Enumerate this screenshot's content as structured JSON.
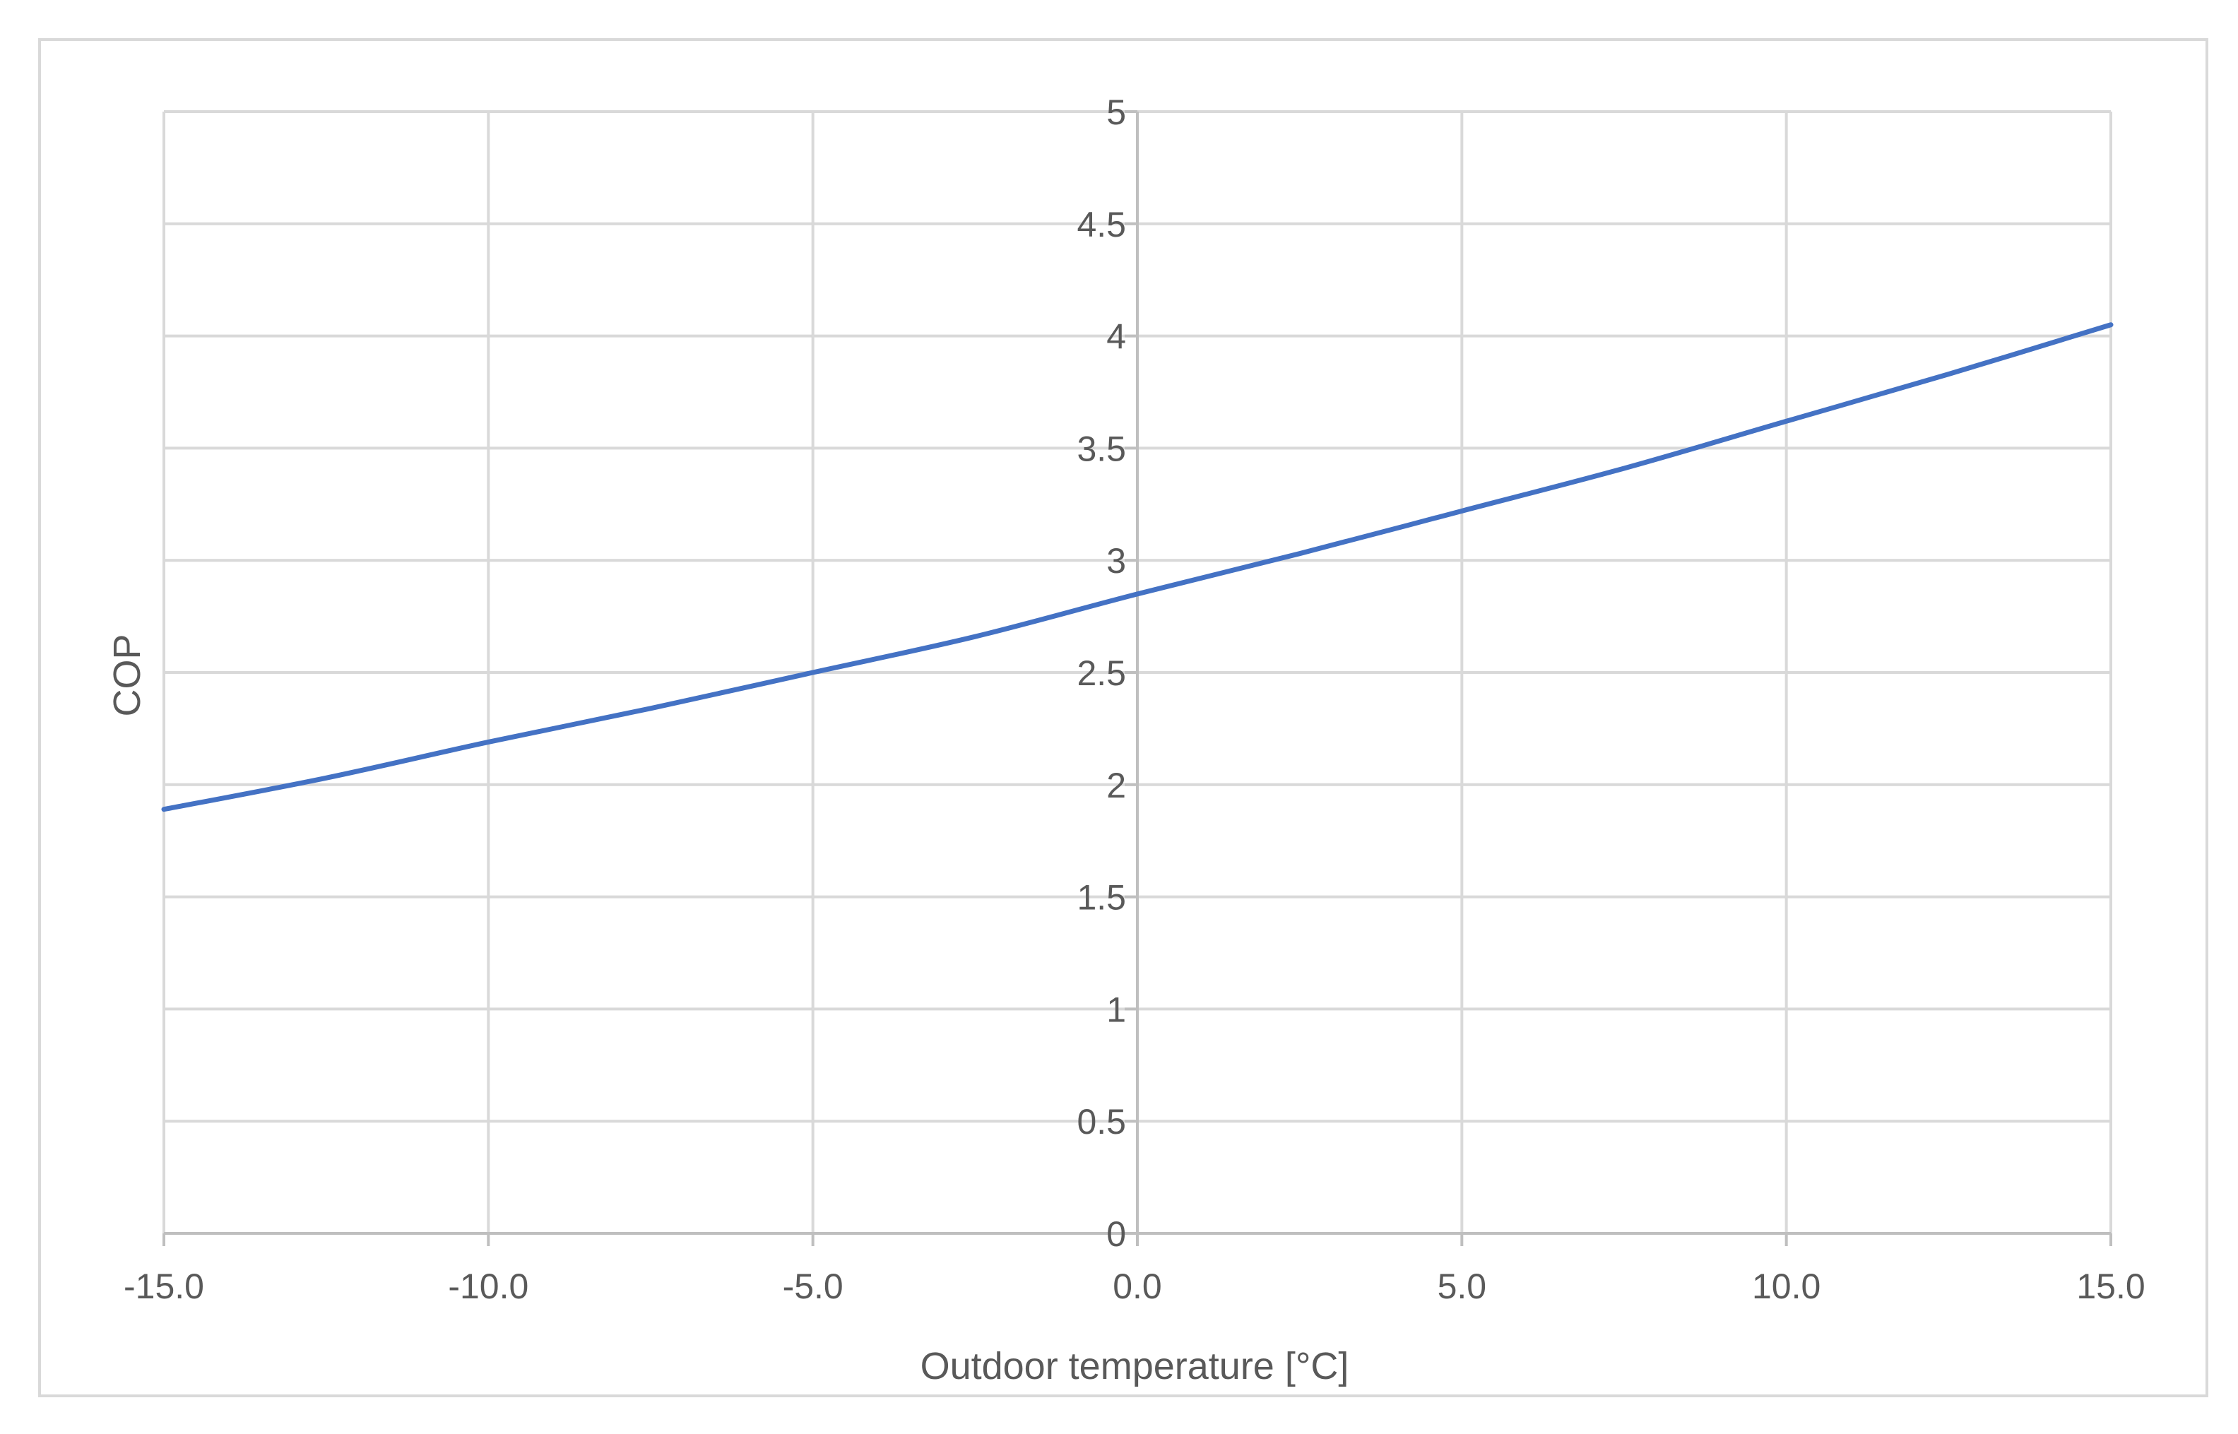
{
  "chart_data": {
    "type": "line",
    "title": "",
    "xlabel": "Outdoor temperature [°C]",
    "ylabel": "COP",
    "xlim": [
      -15,
      15
    ],
    "ylim": [
      0,
      5
    ],
    "x_ticks": [
      "-15.0",
      "-10.0",
      "-5.0",
      "0.0",
      "5.0",
      "10.0",
      "15.0"
    ],
    "y_ticks": [
      "0",
      "0.5",
      "1",
      "1.5",
      "2",
      "2.5",
      "3",
      "3.5",
      "4",
      "4.5",
      "5"
    ],
    "grid": true,
    "legend": "none",
    "series": [
      {
        "color": "#4472c4",
        "x": [
          -15,
          -12.5,
          -10,
          -7.5,
          -5,
          -2.5,
          0,
          2.5,
          5,
          7.5,
          10,
          12.5,
          15
        ],
        "y": [
          1.89,
          2.03,
          2.19,
          2.34,
          2.5,
          2.66,
          2.85,
          3.03,
          3.22,
          3.41,
          3.62,
          3.83,
          4.05
        ]
      }
    ]
  }
}
